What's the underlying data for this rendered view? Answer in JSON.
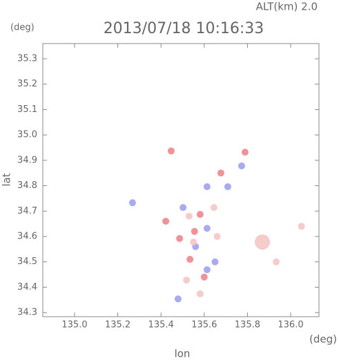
{
  "chart_data": {
    "type": "scatter",
    "title": "2013/07/18 10:16:33",
    "annotation": "ALT(km) 2.0",
    "y_unit": "(deg)",
    "x_unit": "(deg)",
    "xlabel": "lon",
    "ylabel": "lat",
    "xlim": [
      134.853,
      136.131
    ],
    "ylim": [
      34.284,
      35.36
    ],
    "xticks": [
      {
        "value": 135.0,
        "label": "135.0"
      },
      135.2,
      135.4,
      135.6,
      135.8,
      {
        "value": 136.0,
        "label": "136.0"
      }
    ],
    "yticks": [
      34.3,
      34.4,
      34.5,
      34.6,
      34.7,
      34.8,
      34.9,
      {
        "value": 35.0,
        "label": "35.0"
      },
      35.1,
      35.2,
      35.3
    ],
    "series": [
      {
        "color": "#ef7f86",
        "x": [
          135.447,
          135.789,
          135.677,
          135.422,
          135.581,
          135.486,
          135.534,
          135.555,
          135.6
        ],
        "values": [
          34.937,
          34.932,
          34.85,
          34.66,
          34.687,
          34.592,
          34.51,
          34.62,
          34.44
        ]
      },
      {
        "color": "#9a9cf0",
        "x": [
          135.613,
          135.709,
          135.502,
          135.613,
          135.613,
          135.479,
          135.773,
          135.268,
          135.56,
          135.65
        ],
        "values": [
          34.796,
          34.796,
          34.714,
          34.632,
          34.469,
          34.354,
          34.878,
          34.733,
          34.56,
          34.5
        ]
      },
      {
        "color": "#f5c2c2",
        "x": [
          135.869,
          135.933,
          136.05,
          135.55,
          135.518,
          135.581,
          135.645,
          135.53,
          135.66
        ],
        "values": [
          34.578,
          34.5,
          34.64,
          34.578,
          34.428,
          34.374,
          34.714,
          34.68,
          34.6
        ]
      }
    ]
  }
}
